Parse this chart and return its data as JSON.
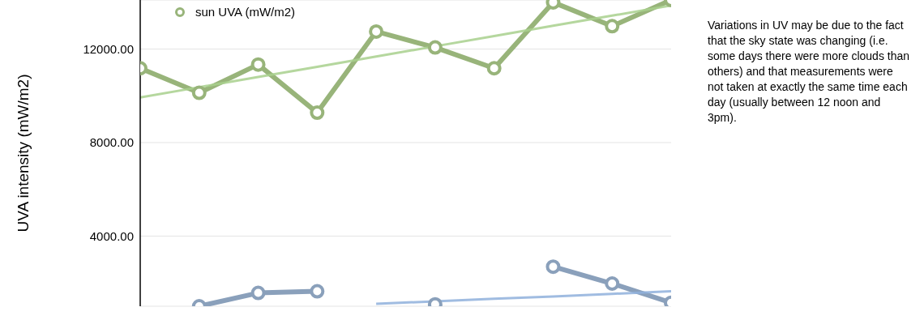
{
  "chart_data": {
    "type": "line",
    "ylabel": "UVA intensity (mW/m2)",
    "categories": [
      null,
      null,
      null,
      null,
      null,
      null,
      null,
      null,
      null,
      null
    ],
    "series": [
      {
        "name": "sun UVA (mW/m2)",
        "color": "#98b47a",
        "marker": "circle",
        "values": [
          11180,
          10130,
          11340,
          9280,
          12750,
          12070,
          11180,
          14000,
          12980,
          14100
        ]
      },
      {
        "color": "#8aa0bb",
        "marker": "circle",
        "values": [
          null,
          1000,
          1570,
          1640,
          null,
          1080,
          null,
          2690,
          1970,
          1150
        ]
      },
      {
        "color": "#a8d08d",
        "marker": "none",
        "values": [
          9930,
          10370,
          10810,
          11240,
          11680,
          12120,
          12560,
          13000,
          13430,
          13870
        ]
      },
      {
        "color": "#8fb0dc",
        "marker": "none",
        "values": [
          null,
          null,
          null,
          null,
          1100,
          1210,
          1320,
          1420,
          1530,
          1640
        ]
      }
    ],
    "ylim": [
      1000,
      14100
    ],
    "yticks": [
      {
        "value": 4000,
        "label": "4000.00"
      },
      {
        "value": 8000,
        "label": "8000.00"
      },
      {
        "value": 12000,
        "label": "12000.00"
      }
    ],
    "grid": "y",
    "legend": "top left",
    "annotations": [
      "Variations in UV may be due to the fact that the sky state was changing (i.e. some days there were more clouds than others) and that measurements were not taken at exactly the same time each day (usually between 12 noon and 3pm)."
    ]
  }
}
